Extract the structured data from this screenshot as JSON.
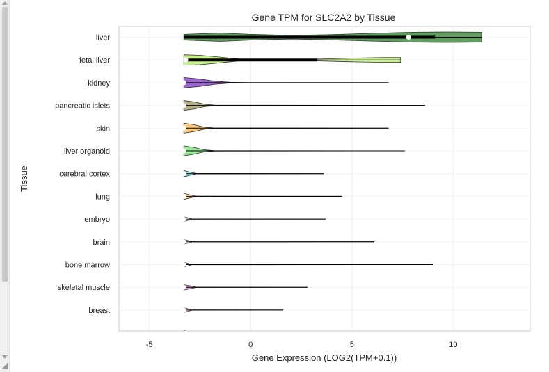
{
  "chart_data": {
    "type": "violin",
    "orientation": "horizontal",
    "title": "Gene TPM for SLC2A2 by Tissue",
    "xlabel": "Gene Expression (LOG2(TPM+0.1))",
    "ylabel": "Tissue",
    "xlim": [
      -6.5,
      13.8
    ],
    "xticks": [
      -5,
      0,
      5,
      10
    ],
    "grid": true,
    "categories": [
      {
        "name": "liver",
        "color": "#5f9e5f",
        "min": -3.3,
        "max": 11.4,
        "q1": -3.3,
        "q3": 9.1,
        "median": 7.8,
        "shape": [
          [
            -3.3,
            0.55
          ],
          [
            -1.5,
            0.8
          ],
          [
            0,
            0.55
          ],
          [
            2,
            0.35
          ],
          [
            4,
            0.5
          ],
          [
            6,
            0.75
          ],
          [
            8,
            0.95
          ],
          [
            9.8,
            1.0
          ],
          [
            11.4,
            0.95
          ]
        ]
      },
      {
        "name": "fetal liver",
        "color": "#c8f28c",
        "min": -3.3,
        "max": 7.4,
        "q1": -3.2,
        "q3": 3.3,
        "median": -3.2,
        "shape": [
          [
            -3.3,
            1.0
          ],
          [
            -2.5,
            0.9
          ],
          [
            -1.5,
            0.55
          ],
          [
            -0.5,
            0.15
          ],
          [
            1,
            0.08
          ],
          [
            3,
            0.15
          ],
          [
            5,
            0.35
          ],
          [
            6.5,
            0.45
          ],
          [
            7.4,
            0.45
          ]
        ]
      },
      {
        "name": "kidney",
        "color": "#9966cc",
        "min": -3.3,
        "max": 6.8,
        "q1": -3.3,
        "q3": -3.3,
        "median": -3.3,
        "shape": [
          [
            -3.3,
            1.0
          ],
          [
            -2.5,
            0.7
          ],
          [
            -1.8,
            0.3
          ],
          [
            -1,
            0.08
          ],
          [
            0,
            0.02
          ],
          [
            6.8,
            0.01
          ]
        ]
      },
      {
        "name": "pancreatic islets",
        "color": "#b3b08a",
        "min": -3.3,
        "max": 8.6,
        "q1": -3.3,
        "q3": -3.3,
        "median": -3.3,
        "shape": [
          [
            -3.3,
            0.95
          ],
          [
            -2.8,
            0.7
          ],
          [
            -2.3,
            0.25
          ],
          [
            -1.8,
            0.05
          ],
          [
            8.6,
            0.01
          ]
        ]
      },
      {
        "name": "skin",
        "color": "#ffcc80",
        "min": -3.3,
        "max": 6.8,
        "q1": -3.3,
        "q3": -3.3,
        "median": -3.3,
        "shape": [
          [
            -3.3,
            0.95
          ],
          [
            -2.8,
            0.65
          ],
          [
            -2.3,
            0.2
          ],
          [
            -1.8,
            0.04
          ],
          [
            6.8,
            0.01
          ]
        ]
      },
      {
        "name": "liver organoid",
        "color": "#99e699",
        "min": -3.3,
        "max": 7.6,
        "q1": -3.3,
        "q3": -3.3,
        "median": -3.3,
        "shape": [
          [
            -3.3,
            0.95
          ],
          [
            -2.8,
            0.65
          ],
          [
            -2.3,
            0.2
          ],
          [
            -1.8,
            0.04
          ],
          [
            7.6,
            0.01
          ]
        ]
      },
      {
        "name": "cerebral cortex",
        "color": "#99dddd",
        "min": -3.3,
        "max": 3.6,
        "q1": -3.3,
        "q3": -3.3,
        "median": -3.3,
        "shape": [
          [
            -3.3,
            0.6
          ],
          [
            -3.0,
            0.3
          ],
          [
            -2.7,
            0.05
          ],
          [
            3.6,
            0.01
          ]
        ]
      },
      {
        "name": "lung",
        "color": "#ffd9a8",
        "min": -3.3,
        "max": 4.5,
        "q1": -3.3,
        "q3": -3.3,
        "median": -3.3,
        "shape": [
          [
            -3.3,
            0.6
          ],
          [
            -3.0,
            0.3
          ],
          [
            -2.7,
            0.06
          ],
          [
            -2,
            0.03
          ],
          [
            4.5,
            0.01
          ]
        ]
      },
      {
        "name": "embryo",
        "color": "#ffffff",
        "min": -3.3,
        "max": 3.7,
        "q1": -3.3,
        "q3": -3.3,
        "median": -3.3,
        "shape": [
          [
            -3.3,
            0.45
          ],
          [
            -3.1,
            0.25
          ],
          [
            -2.9,
            0.03
          ],
          [
            3.7,
            0.01
          ]
        ]
      },
      {
        "name": "brain",
        "color": "#ffffff",
        "min": -3.3,
        "max": 6.1,
        "q1": -3.3,
        "q3": -3.3,
        "median": -3.3,
        "shape": [
          [
            -3.3,
            0.45
          ],
          [
            -3.1,
            0.25
          ],
          [
            -2.9,
            0.03
          ],
          [
            6.1,
            0.01
          ]
        ]
      },
      {
        "name": "bone marrow",
        "color": "#e6e6ff",
        "min": -3.3,
        "max": 9.0,
        "q1": -3.3,
        "q3": -3.3,
        "median": -3.3,
        "shape": [
          [
            -3.3,
            0.45
          ],
          [
            -3.1,
            0.25
          ],
          [
            -2.9,
            0.03
          ],
          [
            9.0,
            0.01
          ]
        ]
      },
      {
        "name": "skeletal muscle",
        "color": "#cc99cc",
        "min": -3.3,
        "max": 2.8,
        "q1": -3.3,
        "q3": -3.3,
        "median": -3.3,
        "shape": [
          [
            -3.3,
            0.5
          ],
          [
            -3.0,
            0.3
          ],
          [
            -2.7,
            0.04
          ],
          [
            2.8,
            0.01
          ]
        ]
      },
      {
        "name": "breast",
        "color": "#ffcccc",
        "min": -3.3,
        "max": 1.6,
        "q1": -3.3,
        "q3": -3.3,
        "median": -3.3,
        "shape": [
          [
            -3.3,
            0.45
          ],
          [
            -3.1,
            0.25
          ],
          [
            -2.9,
            0.03
          ],
          [
            1.6,
            0.01
          ]
        ]
      }
    ],
    "partial_row": {
      "min": -3.3,
      "shape": [
        [
          -3.3,
          0.4
        ],
        [
          -3.1,
          0.2
        ],
        [
          -2.9,
          0.02
        ]
      ]
    }
  }
}
